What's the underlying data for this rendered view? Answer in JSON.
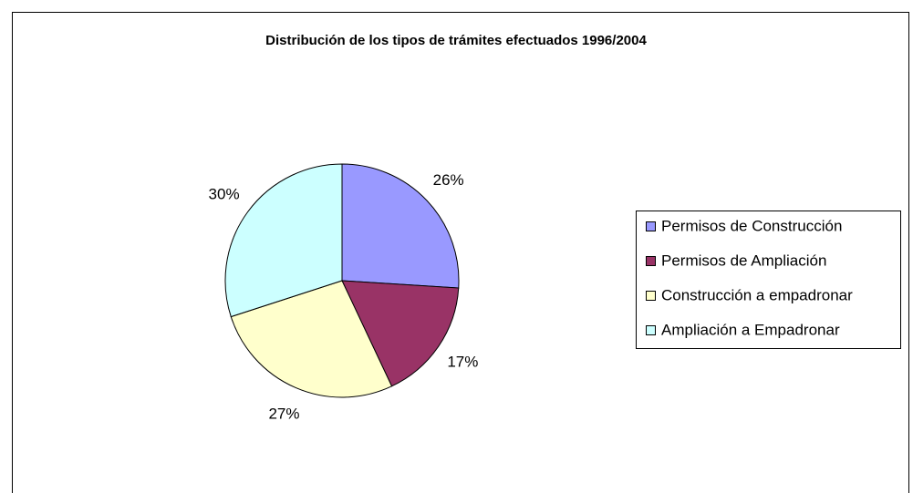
{
  "chart_data": {
    "type": "pie",
    "title": "Distribución de los tipos de trámites efectuados 1996/2004",
    "categories": [
      "Permisos de Construcción",
      "Permisos de Ampliación",
      "Construcción a empadronar",
      "Ampliación a Empadronar"
    ],
    "values": [
      26,
      17,
      27,
      30
    ],
    "value_labels": [
      "26%",
      "17%",
      "27%",
      "30%"
    ],
    "colors": [
      "#9999ff",
      "#993366",
      "#ffffcc",
      "#ccffff"
    ],
    "legend": "right"
  }
}
